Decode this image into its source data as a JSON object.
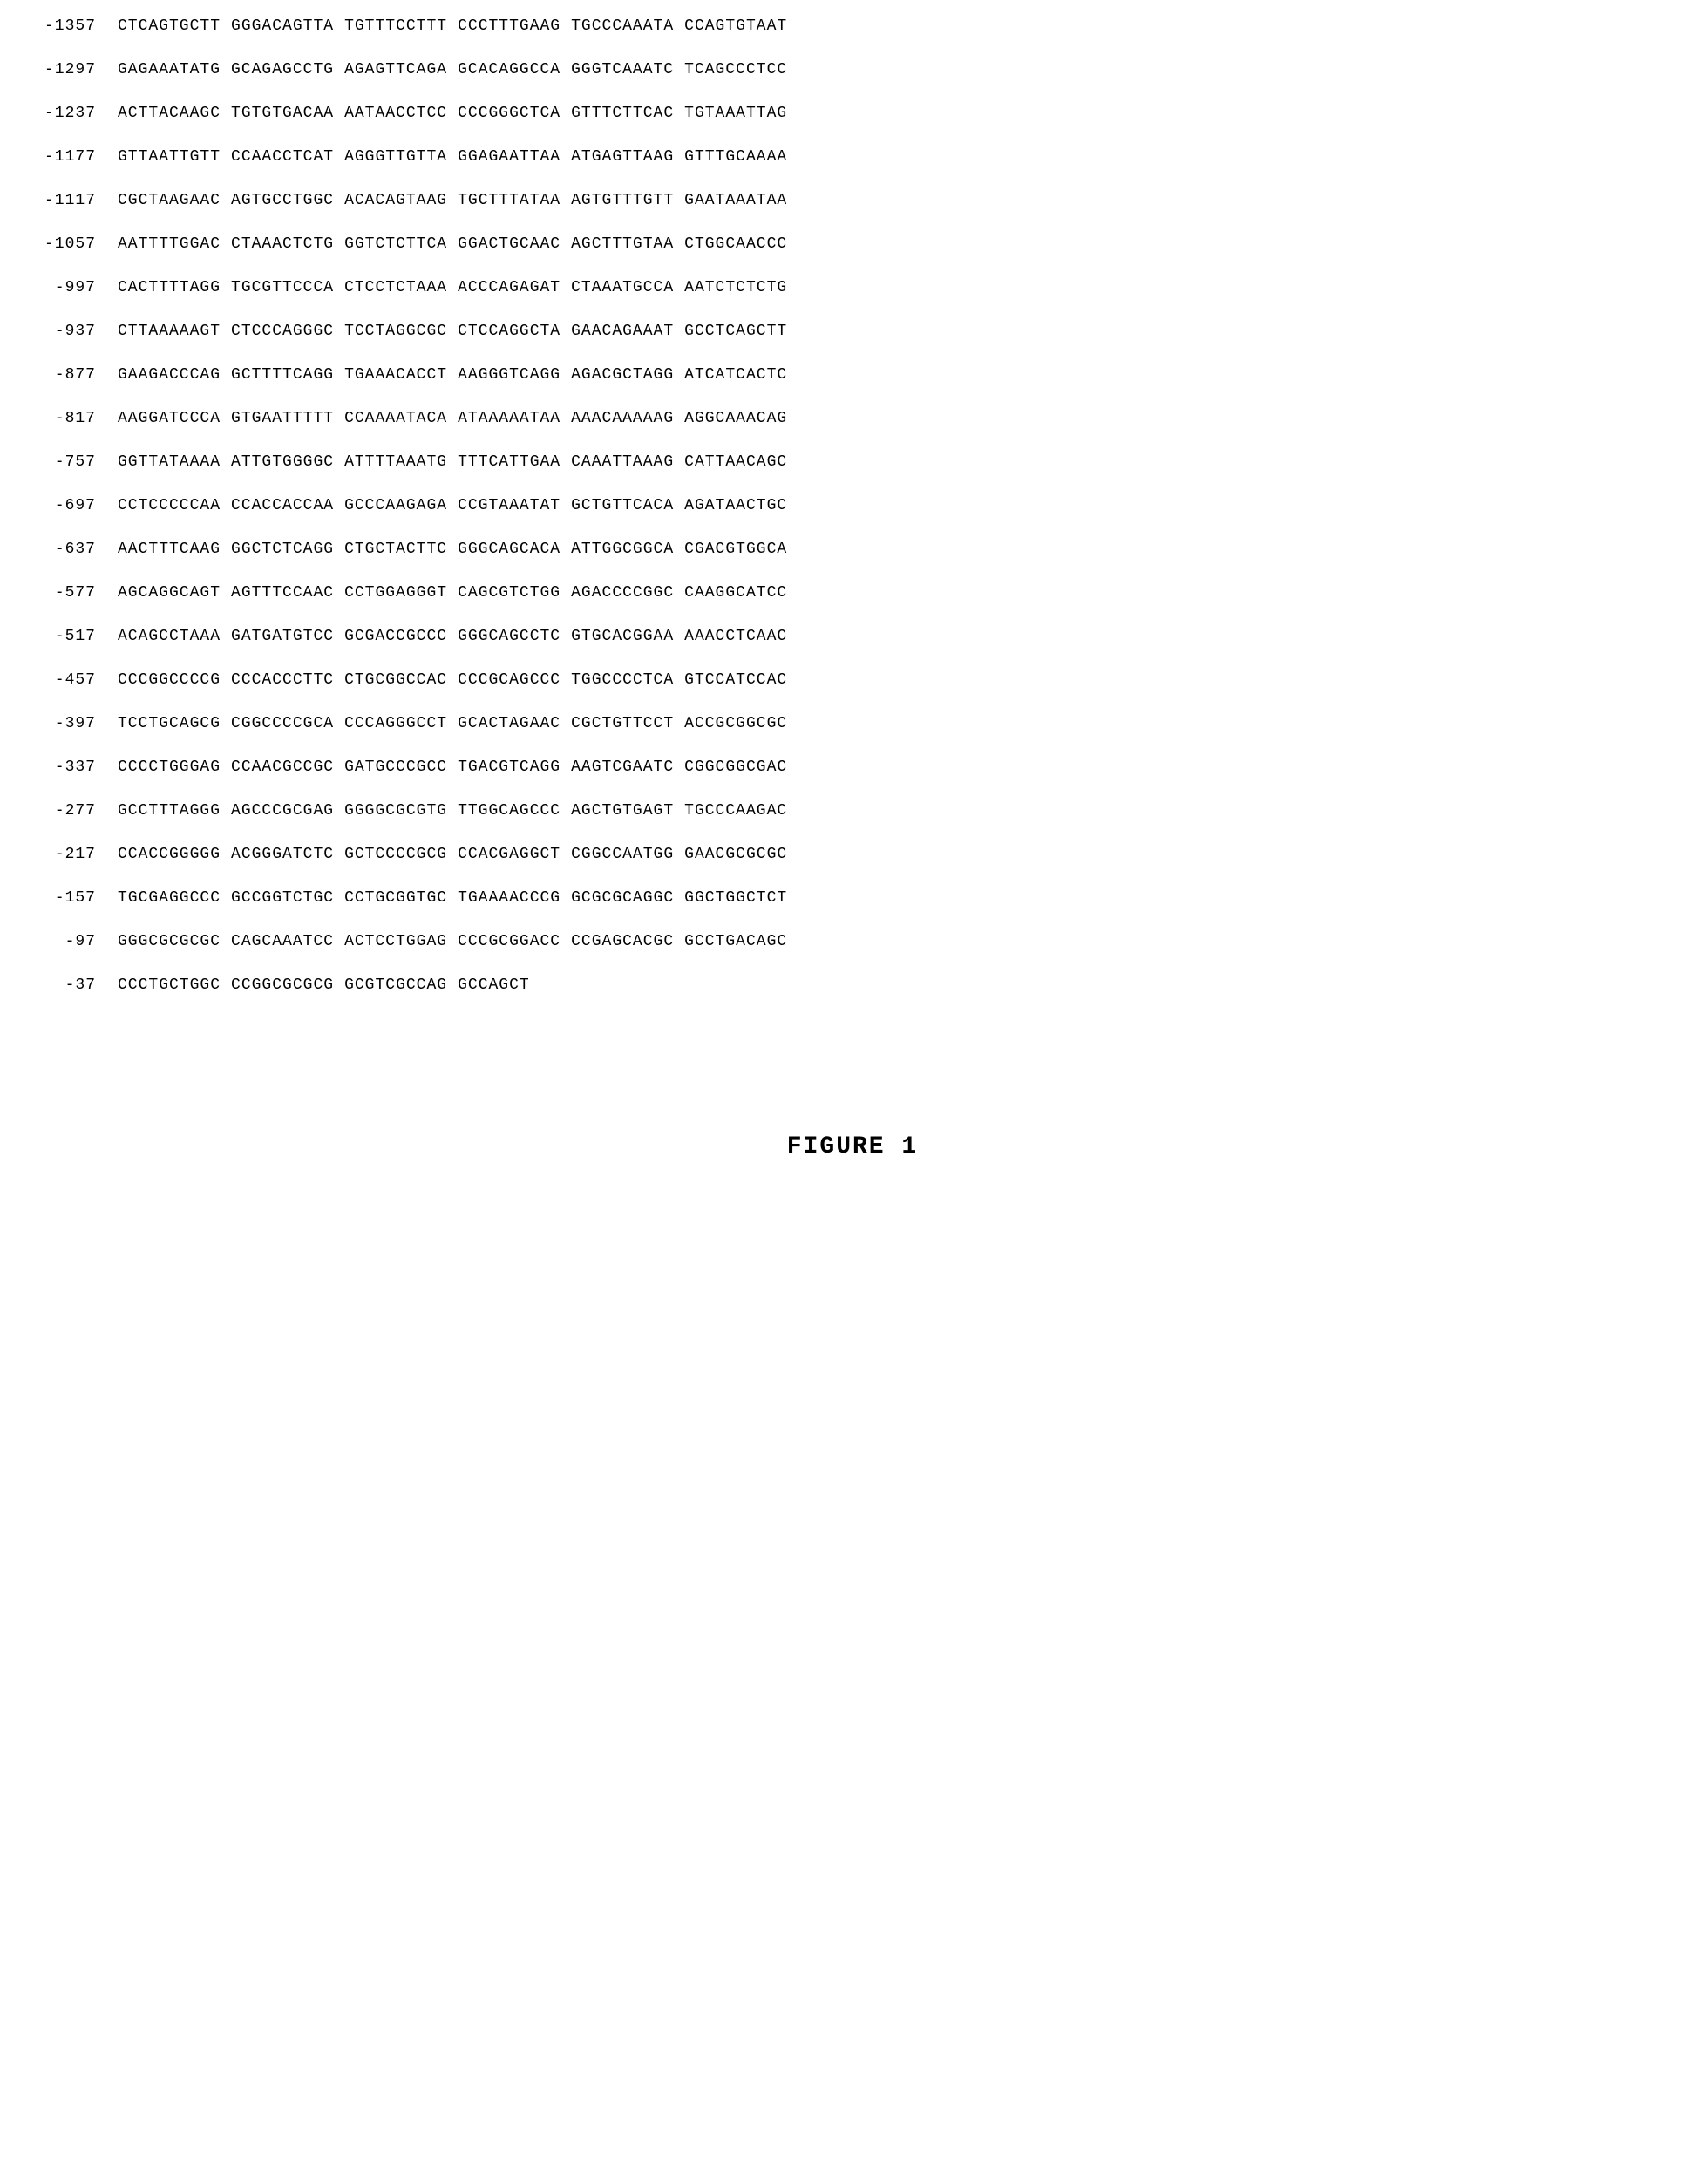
{
  "sequence": {
    "rows": [
      {
        "position": "-1357",
        "segments": [
          "CTCAGTGCTT",
          "GGGACAGTTA",
          "TGTTTCCTTT",
          "CCCTTTGAAG",
          "TGCCCAAATA",
          "CCAGTGTAAT"
        ]
      },
      {
        "position": "-1297",
        "segments": [
          "GAGAAATATG",
          "GCAGAGCCTG",
          "AGAGTTCAGA",
          "GCACAGGCCA",
          "GGGTCAAATC",
          "TCAGCCCTCC"
        ]
      },
      {
        "position": "-1237",
        "segments": [
          "ACTTACAAGC",
          "TGTGTGACAA",
          "AATAACCTCC",
          "CCCGGGCTCA",
          "GTTTCTTCAC",
          "TGTAAATTAG"
        ]
      },
      {
        "position": "-1177",
        "segments": [
          "GTTAATTGTT",
          "CCAACCTCAT",
          "AGGGTTGTTA",
          "GGAGAATTAA",
          "ATGAGTTAAG",
          "GTTTGCAAAA"
        ]
      },
      {
        "position": "-1117",
        "segments": [
          "CGCTAAGAAC",
          "AGTGCCTGGC",
          "ACACAGTAAG",
          "TGCTTTATAA",
          "AGTGTTTGTT",
          "GAATAAATAA"
        ]
      },
      {
        "position": "-1057",
        "segments": [
          "AATTTTGGAC",
          "CTAAACTCTG",
          "GGTCTCTTCA",
          "GGACTGCAAC",
          "AGCTTTGTAA",
          "CTGGCAACCC"
        ]
      },
      {
        "position": "-997",
        "segments": [
          "CACTTTTAGG",
          "TGCGTTCCCA",
          "CTCCTCTAAA",
          "ACCCAGAGAT",
          "CTAAATGCCA",
          "AATCTCTCTG"
        ]
      },
      {
        "position": "-937",
        "segments": [
          "CTTAAAAAGT",
          "CTCCCAGGGC",
          "TCCTAGGCGC",
          "CTCCAGGCTA",
          "GAACAGAAAT",
          "GCCTCAGCTT"
        ]
      },
      {
        "position": "-877",
        "segments": [
          "GAAGACCCAG",
          "GCTTTTCAGG",
          "TGAAACACCT",
          "AAGGGTCAGG",
          "AGACGCTAGG",
          "ATCATCACTC"
        ]
      },
      {
        "position": "-817",
        "segments": [
          "AAGGATCCCA",
          "GTGAATTTTT",
          "CCAAAATACA",
          "ATAAAAATAA",
          "AAACAAAAAG",
          "AGGCAAACAG"
        ]
      },
      {
        "position": "-757",
        "segments": [
          "GGTTATAAAA",
          "ATTGTGGGGC",
          "ATTTTAAATG",
          "TTTCATTGAA",
          "CAAATTAAAG",
          "CATTAACAGC"
        ]
      },
      {
        "position": "-697",
        "segments": [
          "CCTCCCCCAA",
          "CCACCACCAA",
          "GCCCAAGAGA",
          "CCGTAAATAT",
          "GCTGTTCACA",
          "AGATAACTGC"
        ]
      },
      {
        "position": "-637",
        "segments": [
          "AACTTTCAAG",
          "GGCTCTCAGG",
          "CTGCTACTTC",
          "GGGCAGCACA",
          "ATTGGCGGCA",
          "CGACGTGGCA"
        ]
      },
      {
        "position": "-577",
        "segments": [
          "AGCAGGCAGT",
          "AGTTTCCAAC",
          "CCTGGAGGGT",
          "CAGCGTCTGG",
          "AGACCCCGGC",
          "CAAGGCATCC"
        ]
      },
      {
        "position": "-517",
        "segments": [
          "ACAGCCTAAA",
          "GATGATGTCC",
          "GCGACCGCCC",
          "GGGCAGCCTC",
          "GTGCACGGAA",
          "AAACCTCAAC"
        ]
      },
      {
        "position": "-457",
        "segments": [
          "CCCGGCCCCG",
          "CCCACCCTTC",
          "CTGCGGCCAC",
          "CCCGCAGCCC",
          "TGGCCCCTCA",
          "GTCCATCCAC"
        ]
      },
      {
        "position": "-397",
        "segments": [
          "TCCTGCAGCG",
          "CGGCCCCGCA",
          "CCCAGGGCCT",
          "GCACTAGAAC",
          "CGCTGTTCCT",
          "ACCGCGGCGC"
        ]
      },
      {
        "position": "-337",
        "segments": [
          "CCCCTGGGAG",
          "CCAACGCCGC",
          "GATGCCCGCC",
          "TGACGTCAGG",
          "AAGTCGAATC",
          "CGGCGGCGAC"
        ]
      },
      {
        "position": "-277",
        "segments": [
          "GCCTTTAGGG",
          "AGCCCGCGAG",
          "GGGGCGCGTG",
          "TTGGCAGCCC",
          "AGCTGTGAGT",
          "TGCCCAAGAC"
        ]
      },
      {
        "position": "-217",
        "segments": [
          "CCACCGGGGG",
          "ACGGGATCTC",
          "GCTCCCCGCG",
          "CCACGAGGCT",
          "CGGCCAATGG",
          "GAACGCGCGC"
        ]
      },
      {
        "position": "-157",
        "segments": [
          "TGCGAGGCCC",
          "GCCGGTCTGC",
          "CCTGCGGTGC",
          "TGAAAACCCG",
          "GCGCGCAGGC",
          "GGCTGGCTCT"
        ]
      },
      {
        "position": "-97",
        "segments": [
          "GGGCGCGCGC",
          "CAGCAAATCC",
          "ACTCCTGGAG",
          "CCCGCGGACC",
          "CCGAGCACGC",
          "GCCTGACAGC"
        ]
      },
      {
        "position": "-37",
        "segments": [
          "CCCTGCTGGC",
          "CCGGCGCGCG",
          "GCGTCGCCAG",
          "GCCAGCT"
        ]
      }
    ]
  },
  "figure_label": "FIGURE 1",
  "style": {
    "background_color": "#ffffff",
    "text_color": "#000000",
    "font_family": "Courier New",
    "font_size": 18,
    "row_gap": 30,
    "position_width": 80,
    "segment_gap": 12,
    "figure_font_size": 28,
    "letter_spacing": 1
  }
}
